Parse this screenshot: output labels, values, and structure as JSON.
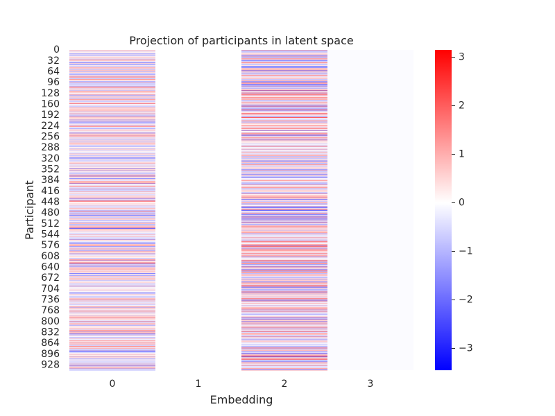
{
  "chart_data": {
    "type": "heatmap",
    "title": "Projection of participants in latent space",
    "xlabel": "Embedding",
    "ylabel": "Participant",
    "x_categories": [
      "0",
      "1",
      "2",
      "3"
    ],
    "y_ticks": [
      "0",
      "32",
      "64",
      "96",
      "128",
      "160",
      "192",
      "224",
      "256",
      "288",
      "320",
      "352",
      "384",
      "416",
      "448",
      "480",
      "512",
      "544",
      "576",
      "608",
      "640",
      "672",
      "704",
      "736",
      "768",
      "800",
      "832",
      "864",
      "896",
      "928"
    ],
    "n_participants": 944,
    "colorbar": {
      "ticks": [
        "3",
        "2",
        "1",
        "0",
        "−1",
        "−2",
        "−3"
      ],
      "tick_values": [
        3,
        2,
        1,
        0,
        -1,
        -2,
        -3
      ],
      "vmin": -3.45,
      "vmax": 3.15,
      "cmap": [
        "#0000ff",
        "#ffffff",
        "#ff0000"
      ]
    },
    "columns": [
      {
        "embedding": "0",
        "pattern": "mixed",
        "amplitude": 1.6
      },
      {
        "embedding": "1",
        "pattern": "constant",
        "value": 0.0
      },
      {
        "embedding": "2",
        "pattern": "mixed",
        "amplitude": 2.0
      },
      {
        "embedding": "3",
        "pattern": "near-constant",
        "value": -0.05
      }
    ],
    "grid": false
  }
}
